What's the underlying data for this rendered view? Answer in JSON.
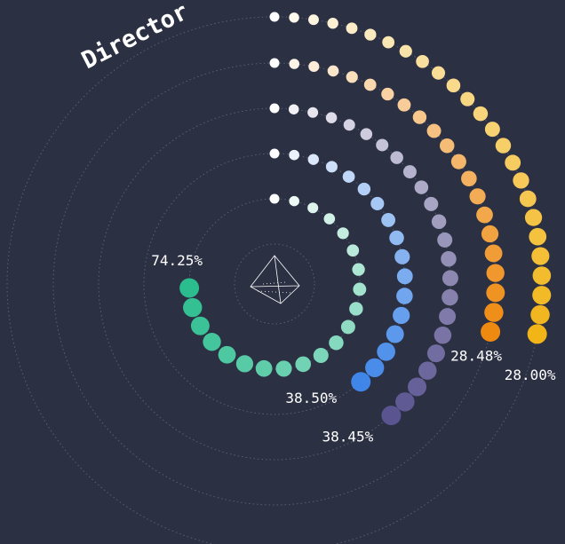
{
  "chart_data": {
    "type": "radial-dots",
    "title": "Director",
    "ylim": [
      0,
      100
    ],
    "series": [
      {
        "values": [
          74.25
        ],
        "value_labels": [
          "74.25%"
        ],
        "color": "#2bbd8e"
      },
      {
        "values": [
          38.5
        ],
        "value_labels": [
          "38.50%"
        ],
        "color": "#3f86e8"
      },
      {
        "values": [
          38.45
        ],
        "value_labels": [
          "38.45%"
        ],
        "color": "#5a5490"
      },
      {
        "values": [
          28.48
        ],
        "value_labels": [
          "28.48%"
        ],
        "color": "#ee8a10"
      },
      {
        "values": [
          28
        ],
        "value_labels": [
          "28.00%"
        ],
        "color": "#f2b518"
      }
    ]
  }
}
